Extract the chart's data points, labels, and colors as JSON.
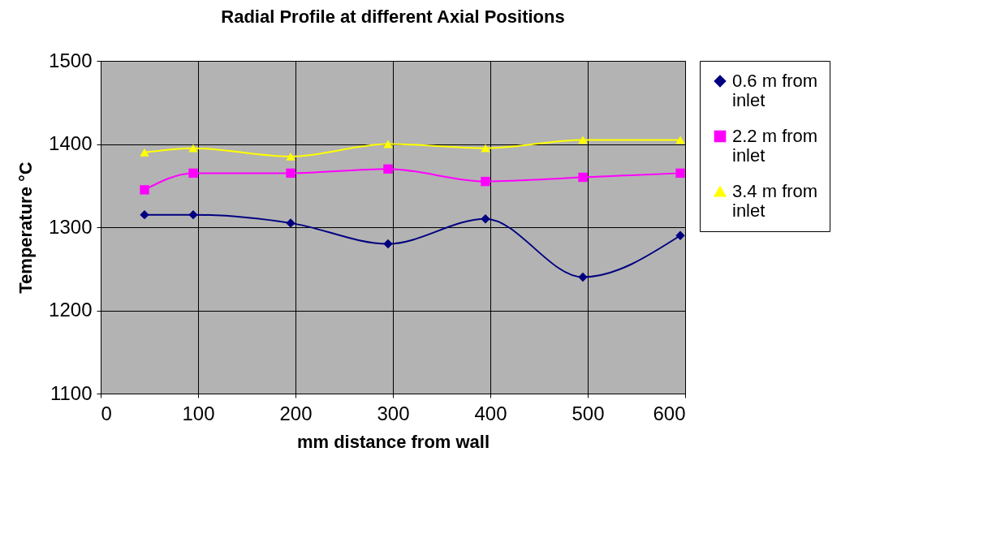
{
  "chart_data": {
    "type": "line",
    "title": "Radial Profile at different Axial Positions",
    "xlabel": "mm    distance from wall",
    "ylabel": "Temperature  °C",
    "x": [
      45,
      95,
      195,
      295,
      395,
      495,
      595
    ],
    "series": [
      {
        "name": "0.6 m from inlet",
        "color": "#000080",
        "marker": "diamond",
        "values": [
          1315,
          1315,
          1305,
          1280,
          1310,
          1240,
          1290
        ]
      },
      {
        "name": "2.2 m from inlet",
        "color": "#ff00ff",
        "marker": "square",
        "values": [
          1345,
          1365,
          1365,
          1370,
          1355,
          1360,
          1365
        ]
      },
      {
        "name": "3.4 m from inlet",
        "color": "#ffff00",
        "marker": "triangle",
        "values": [
          1390,
          1395,
          1385,
          1400,
          1395,
          1405,
          1405
        ]
      }
    ],
    "xlim": [
      0,
      600
    ],
    "xticks": [
      0,
      100,
      200,
      300,
      400,
      500,
      600
    ],
    "ylim": [
      1100,
      1500
    ],
    "yticks": [
      1100,
      1200,
      1300,
      1400,
      1500
    ],
    "grid": true,
    "legend": "right",
    "line_style": "solid"
  }
}
